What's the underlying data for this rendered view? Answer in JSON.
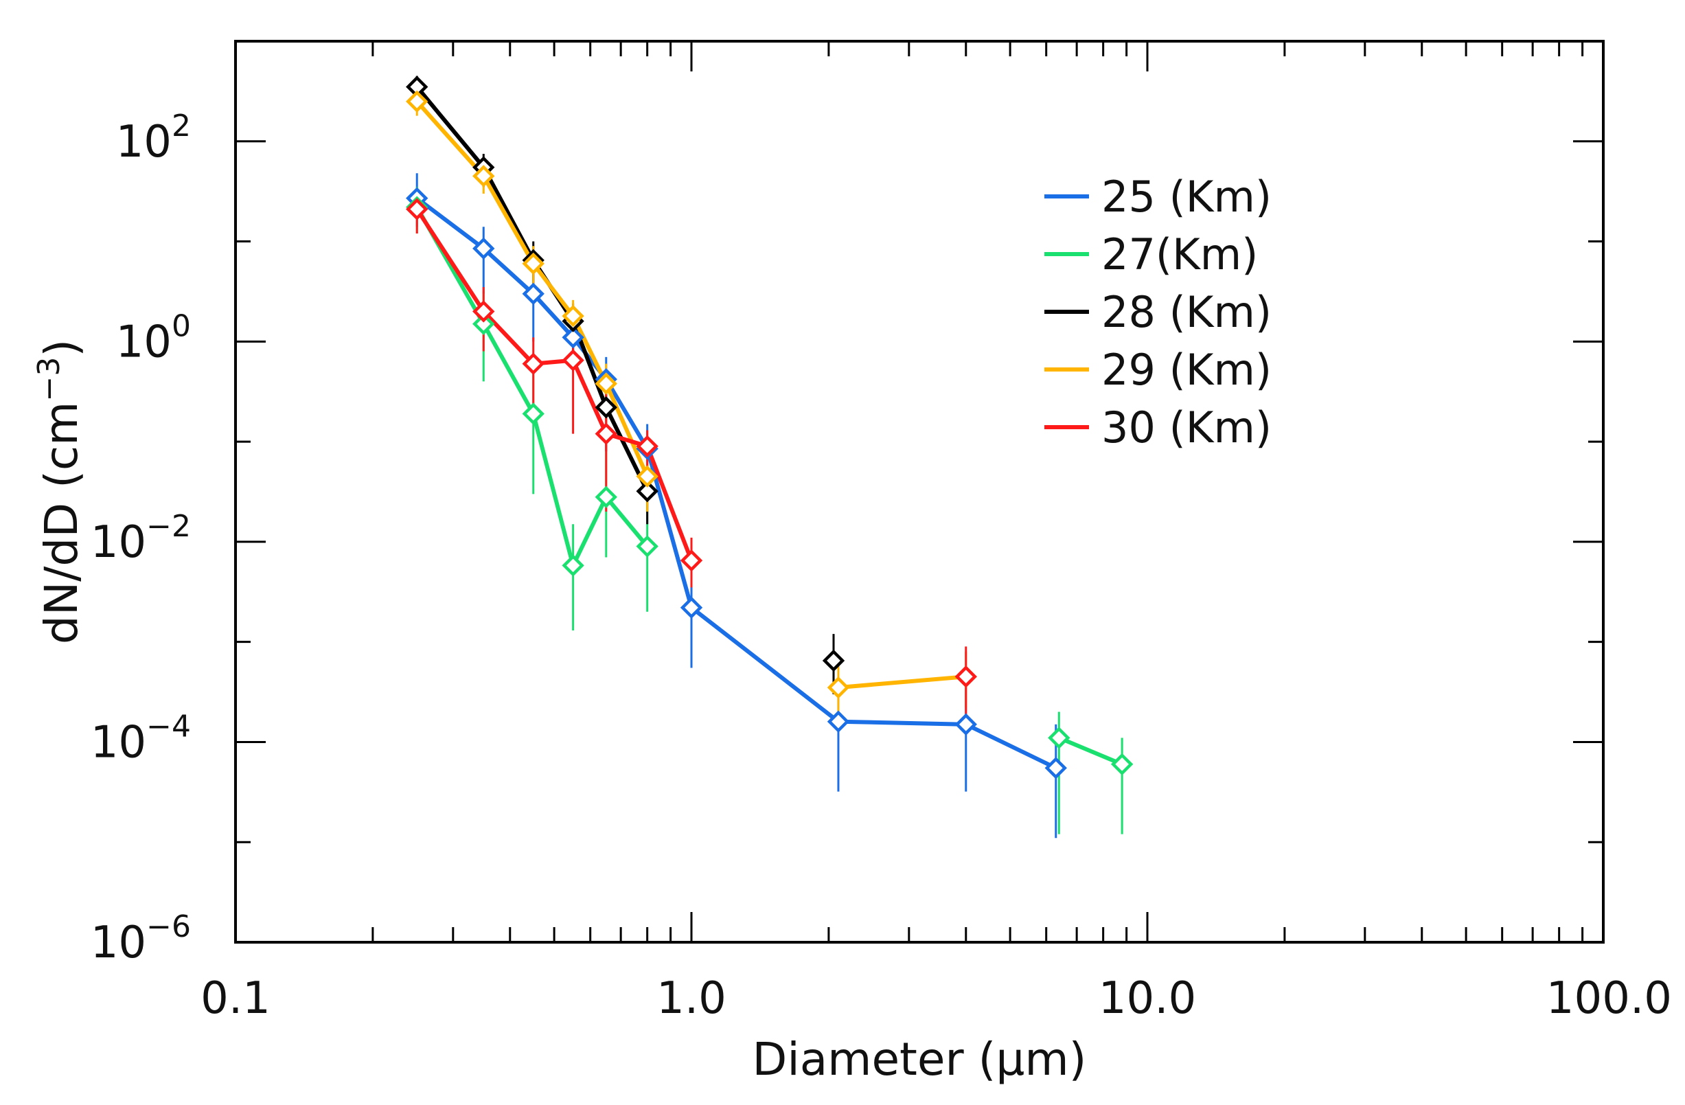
{
  "chart_data": {
    "type": "line",
    "title": "",
    "xlabel": "Diameter (μm)",
    "ylabel": "dN/dD (cm",
    "ylabel_sup": "−3",
    "ylabel_close": ")",
    "xscale": "log",
    "yscale": "log",
    "xlim": [
      0.1,
      100.0
    ],
    "ylim": [
      1e-06,
      1000
    ],
    "grid": false,
    "legend_position": "top-right",
    "x_ticks": [
      {
        "value": 0.1,
        "label": "0.1"
      },
      {
        "value": 1.0,
        "label": "1.0"
      },
      {
        "value": 10.0,
        "label": "10.0"
      },
      {
        "value": 100.0,
        "label": "100.0"
      }
    ],
    "y_ticks": [
      {
        "value": 100,
        "base": "10",
        "exp": "2"
      },
      {
        "value": 1,
        "base": "10",
        "exp": "0"
      },
      {
        "value": 0.01,
        "base": "10",
        "exp": "−2"
      },
      {
        "value": 0.0001,
        "base": "10",
        "exp": "−4"
      },
      {
        "value": 1e-06,
        "base": "10",
        "exp": "−6"
      }
    ],
    "series": [
      {
        "name": "25 (Km)",
        "color": "#1a6ee6",
        "points": [
          {
            "x": 0.25,
            "y": 27,
            "lo": 14,
            "hi": 48,
            "seg": 0
          },
          {
            "x": 0.35,
            "y": 8.5,
            "lo": 3,
            "hi": 14,
            "seg": 0
          },
          {
            "x": 0.45,
            "y": 3.0,
            "lo": 1.0,
            "hi": 6,
            "seg": 0
          },
          {
            "x": 0.55,
            "y": 1.1,
            "lo": 0.5,
            "hi": 1.6,
            "seg": 0
          },
          {
            "x": 0.65,
            "y": 0.42,
            "lo": 0.2,
            "hi": 0.7,
            "seg": 0
          },
          {
            "x": 0.8,
            "y": 0.085,
            "lo": 0.03,
            "hi": 0.15,
            "seg": 0
          },
          {
            "x": 1.0,
            "y": 0.0022,
            "lo": 0.00055,
            "hi": 0.005,
            "seg": 0
          },
          {
            "x": 2.1,
            "y": 0.00016,
            "lo": 3.2e-05,
            "hi": 0.00045,
            "seg": 0
          },
          {
            "x": 4.0,
            "y": 0.00015,
            "lo": 3.2e-05,
            "hi": 0.0004,
            "seg": 0
          },
          {
            "x": 6.3,
            "y": 5.5e-05,
            "lo": 1.1e-05,
            "hi": 0.00015,
            "seg": 0
          }
        ]
      },
      {
        "name": "27(Km)",
        "color": "#19e06e",
        "points": [
          {
            "x": 0.25,
            "y": 22,
            "lo": 12,
            "hi": 35,
            "seg": 0
          },
          {
            "x": 0.35,
            "y": 1.5,
            "lo": 0.4,
            "hi": 3.2,
            "seg": 0
          },
          {
            "x": 0.45,
            "y": 0.19,
            "lo": 0.03,
            "hi": 0.5,
            "seg": 0
          },
          {
            "x": 0.55,
            "y": 0.0058,
            "lo": 0.0013,
            "hi": 0.015,
            "seg": 0
          },
          {
            "x": 0.65,
            "y": 0.028,
            "lo": 0.007,
            "hi": 0.08,
            "seg": 0
          },
          {
            "x": 0.8,
            "y": 0.009,
            "lo": 0.002,
            "hi": 0.025,
            "seg": 0
          },
          {
            "x": 6.4,
            "y": 0.00011,
            "lo": 1.2e-05,
            "hi": 0.0002,
            "seg": 1
          },
          {
            "x": 8.8,
            "y": 6e-05,
            "lo": 1.2e-05,
            "hi": 0.00011,
            "seg": 1
          }
        ]
      },
      {
        "name": "28 (Km)",
        "color": "#000000",
        "points": [
          {
            "x": 0.25,
            "y": 350,
            "lo": 250,
            "hi": 450,
            "seg": 0
          },
          {
            "x": 0.35,
            "y": 55,
            "lo": 35,
            "hi": 75,
            "seg": 0
          },
          {
            "x": 0.45,
            "y": 6.5,
            "lo": 3.5,
            "hi": 10,
            "seg": 0
          },
          {
            "x": 0.55,
            "y": 1.6,
            "lo": 0.8,
            "hi": 2.4,
            "seg": 0
          },
          {
            "x": 0.65,
            "y": 0.22,
            "lo": 0.08,
            "hi": 0.4,
            "seg": 0
          },
          {
            "x": 0.8,
            "y": 0.032,
            "lo": 0.015,
            "hi": 0.05,
            "seg": 0
          },
          {
            "x": 2.05,
            "y": 0.00065,
            "lo": 0.0003,
            "hi": 0.0012,
            "seg": 1
          }
        ]
      },
      {
        "name": "29 (Km)",
        "color": "#ffb400",
        "points": [
          {
            "x": 0.25,
            "y": 250,
            "lo": 180,
            "hi": 320,
            "seg": 0
          },
          {
            "x": 0.35,
            "y": 45,
            "lo": 30,
            "hi": 60,
            "seg": 0
          },
          {
            "x": 0.45,
            "y": 6.0,
            "lo": 3.2,
            "hi": 9,
            "seg": 0
          },
          {
            "x": 0.55,
            "y": 1.8,
            "lo": 0.9,
            "hi": 2.6,
            "seg": 0
          },
          {
            "x": 0.65,
            "y": 0.38,
            "lo": 0.15,
            "hi": 0.6,
            "seg": 0
          },
          {
            "x": 0.8,
            "y": 0.045,
            "lo": 0.02,
            "hi": 0.07,
            "seg": 0
          },
          {
            "x": 2.1,
            "y": 0.00035,
            "lo": 0.00018,
            "hi": 0.0006,
            "seg": 1
          },
          {
            "x": 4.0,
            "y": 0.00045,
            "lo": 0.00022,
            "hi": 0.0008,
            "seg": 1
          }
        ]
      },
      {
        "name": "30 (Km)",
        "color": "#ff1a1a",
        "points": [
          {
            "x": 0.25,
            "y": 21,
            "lo": 12,
            "hi": 32,
            "seg": 0
          },
          {
            "x": 0.35,
            "y": 2.0,
            "lo": 0.8,
            "hi": 3.5,
            "seg": 0
          },
          {
            "x": 0.45,
            "y": 0.6,
            "lo": 0.2,
            "hi": 1.1,
            "seg": 0
          },
          {
            "x": 0.55,
            "y": 0.65,
            "lo": 0.12,
            "hi": 1.2,
            "seg": 0
          },
          {
            "x": 0.65,
            "y": 0.12,
            "lo": 0.02,
            "hi": 0.35,
            "seg": 0
          },
          {
            "x": 0.8,
            "y": 0.09,
            "lo": 0.04,
            "hi": 0.13,
            "seg": 0
          },
          {
            "x": 1.0,
            "y": 0.0065,
            "lo": 0.0035,
            "hi": 0.011,
            "seg": 0
          },
          {
            "x": 4.0,
            "y": 0.00045,
            "lo": 0.00012,
            "hi": 0.0009,
            "seg": 1
          }
        ]
      }
    ]
  }
}
